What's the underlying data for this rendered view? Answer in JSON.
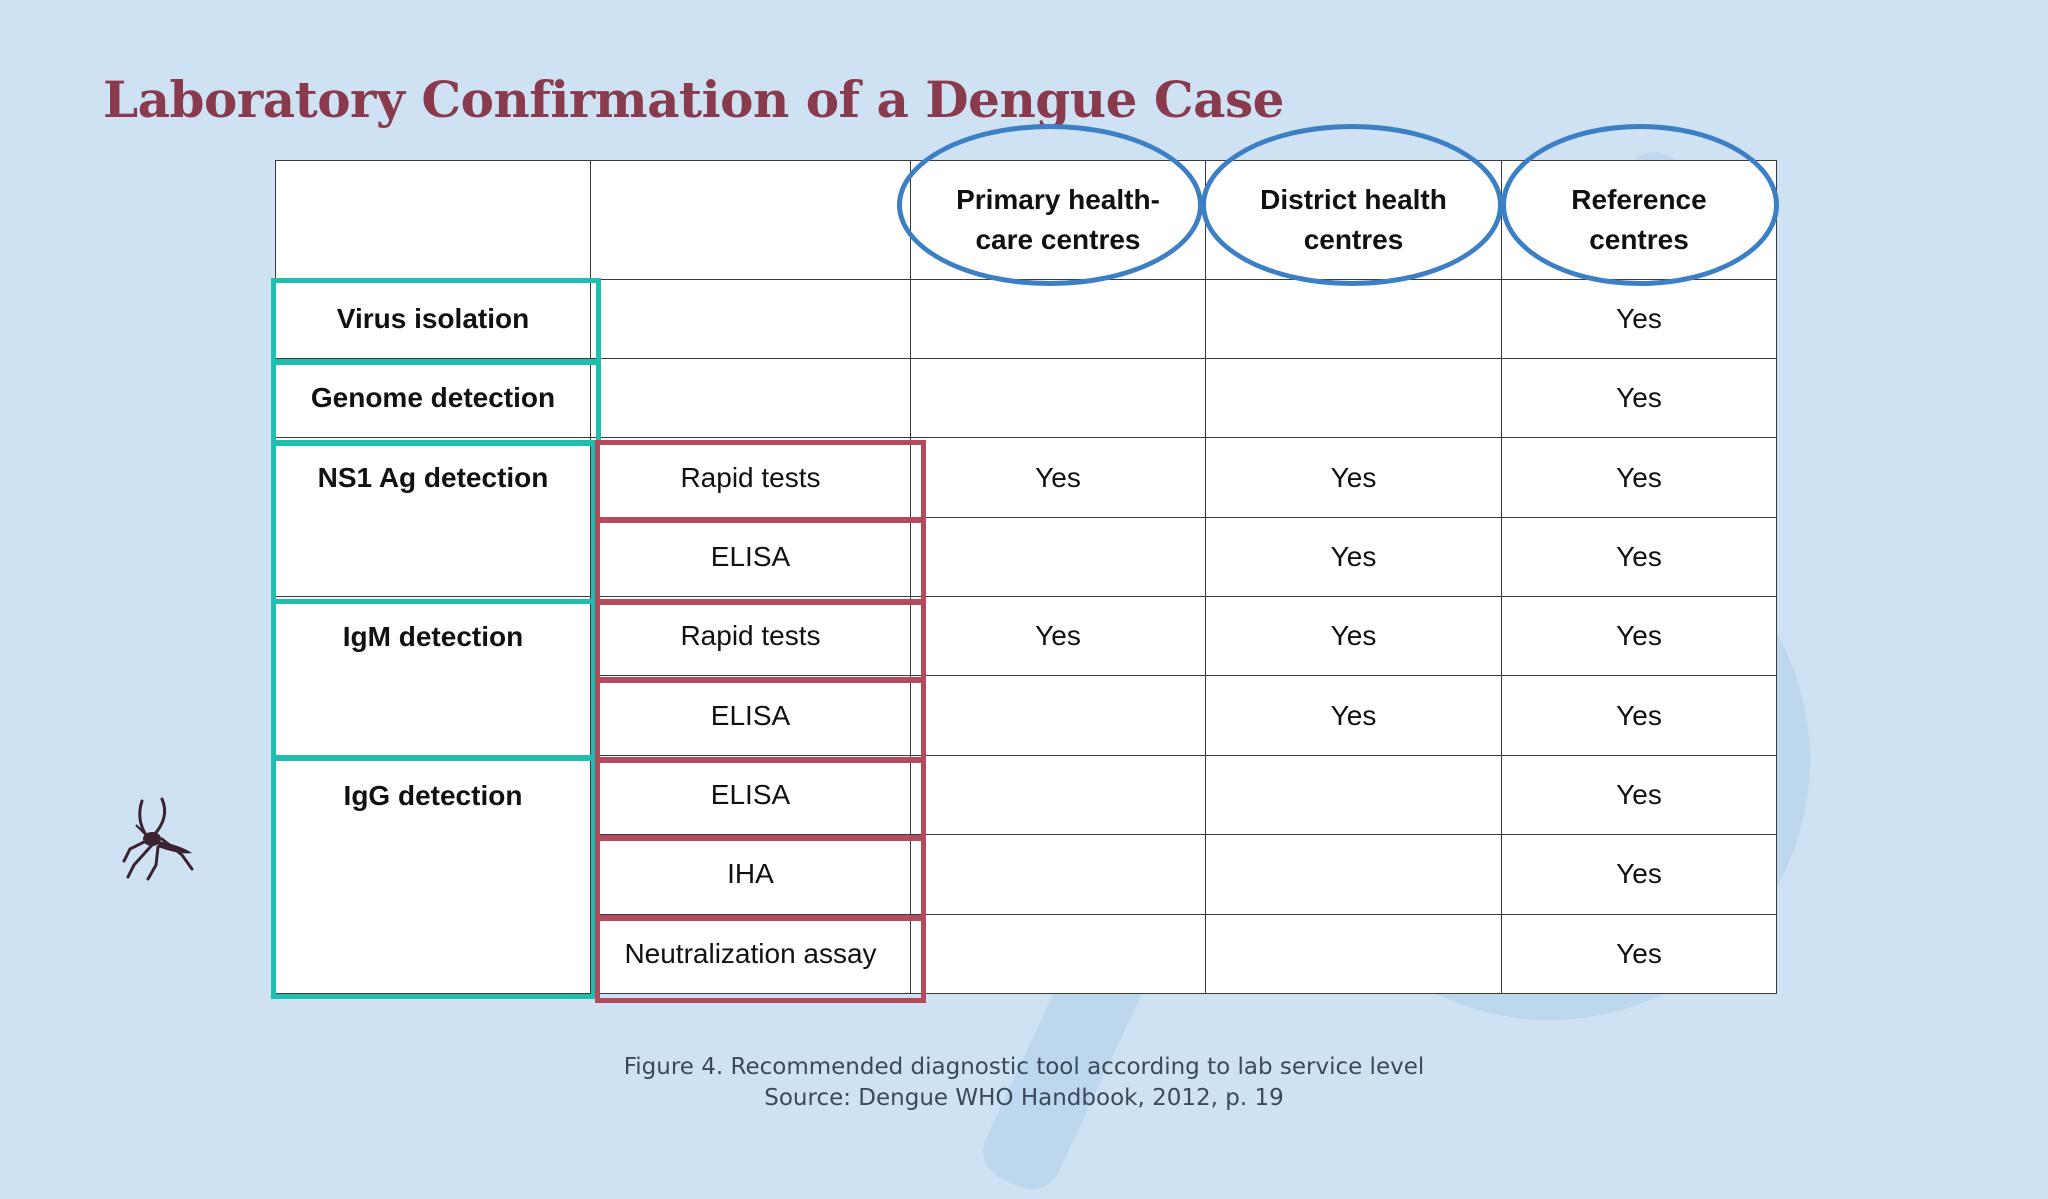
{
  "title": "Laboratory Confirmation of a Dengue Case",
  "table": {
    "columns": [
      "Primary health-care centres",
      "District health centres",
      "Reference centres"
    ],
    "column_lines": [
      [
        "Primary health-",
        "care centres"
      ],
      [
        "District health",
        "centres"
      ],
      [
        "Reference",
        "centres"
      ]
    ],
    "rows": [
      {
        "category": "Virus isolation",
        "method": "",
        "cells": [
          "",
          "",
          "Yes"
        ]
      },
      {
        "category": "Genome detection",
        "method": "",
        "cells": [
          "",
          "",
          "Yes"
        ]
      },
      {
        "category": "NS1 Ag detection",
        "method": "Rapid tests",
        "cells": [
          "Yes",
          "Yes",
          "Yes"
        ]
      },
      {
        "category": "",
        "method": "ELISA",
        "cells": [
          "",
          "Yes",
          "Yes"
        ]
      },
      {
        "category": "IgM detection",
        "method": "Rapid tests",
        "cells": [
          "Yes",
          "Yes",
          "Yes"
        ]
      },
      {
        "category": "",
        "method": "ELISA",
        "cells": [
          "",
          "Yes",
          "Yes"
        ]
      },
      {
        "category": "IgG detection",
        "method": "ELISA",
        "cells": [
          "",
          "",
          "Yes"
        ]
      },
      {
        "category": "",
        "method": "IHA",
        "cells": [
          "",
          "",
          "Yes"
        ]
      },
      {
        "category": "",
        "method": "Neutralization assay",
        "cells": [
          "",
          "",
          "Yes"
        ]
      }
    ]
  },
  "caption": {
    "line1": "Figure 4. Recommended diagnostic tool according to lab service level",
    "line2": "Source: Dengue WHO Handbook, 2012, p. 19"
  },
  "colors": {
    "background": "#cfe2f3",
    "title": "#8a3a4d",
    "teal_highlight": "#1ebfae",
    "red_highlight": "#b54a5c",
    "blue_ellipse": "#3d7fc4"
  },
  "icons": [
    "mosquito-icon"
  ]
}
